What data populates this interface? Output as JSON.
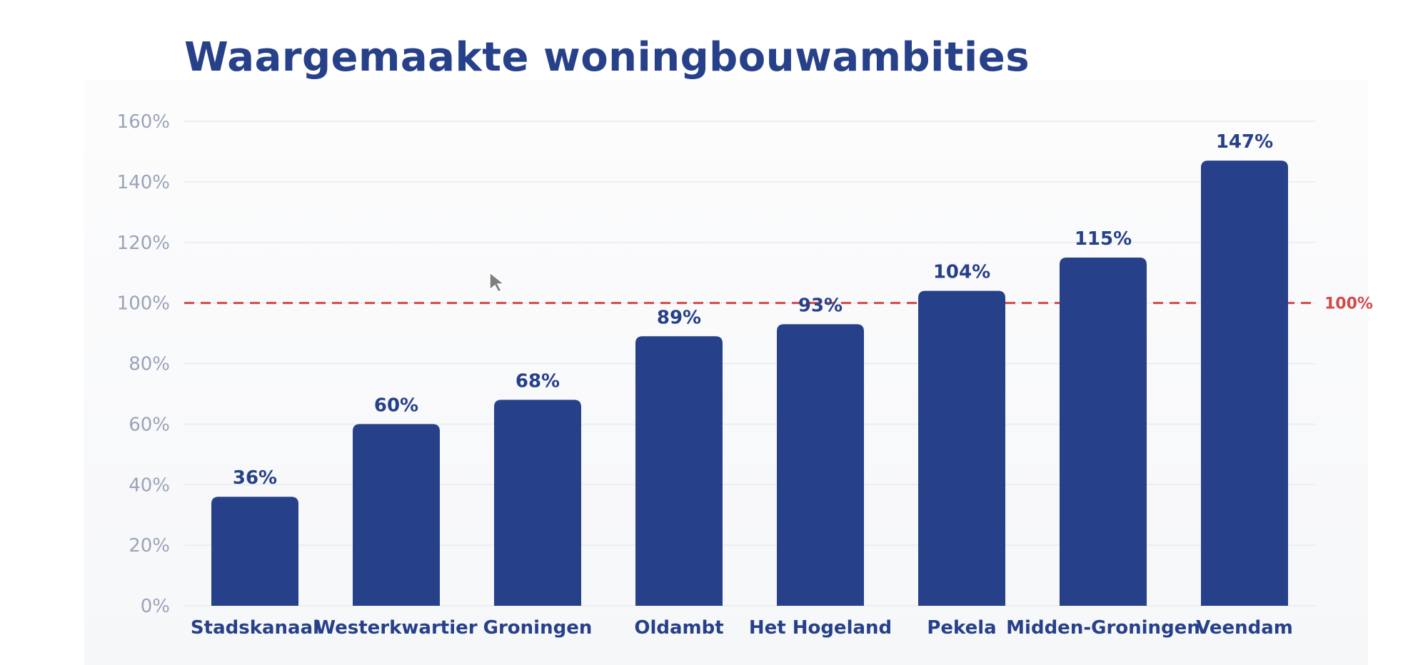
{
  "title": "Waargemaakte woningbouwambities",
  "chart_data": {
    "type": "bar",
    "categories": [
      "Stadskanaal",
      "Westerkwartier",
      "Groningen",
      "Oldambt",
      "Het Hogeland",
      "Pekela",
      "Midden-Groningen",
      "Veendam"
    ],
    "values": [
      36,
      60,
      68,
      89,
      93,
      104,
      115,
      147
    ],
    "value_labels": [
      "36%",
      "60%",
      "68%",
      "89%",
      "93%",
      "104%",
      "115%",
      "147%"
    ],
    "yticks": [
      0,
      20,
      40,
      60,
      80,
      100,
      120,
      140,
      160
    ],
    "ytick_labels": [
      "0%",
      "20%",
      "40%",
      "60%",
      "80%",
      "100%",
      "120%",
      "140%",
      "160%"
    ],
    "ylim": [
      0,
      160
    ],
    "reference_line": {
      "value": 100,
      "label": "100%",
      "style": "dashed"
    },
    "grid": true,
    "legend": "none",
    "title": "Waargemaakte woningbouwambities",
    "xlabel": "",
    "ylabel": "",
    "colors": {
      "bar": "#26408a",
      "reference": "#d24a4a",
      "grid": "#e8eaef",
      "tick_text": "#9aa3b8"
    }
  }
}
